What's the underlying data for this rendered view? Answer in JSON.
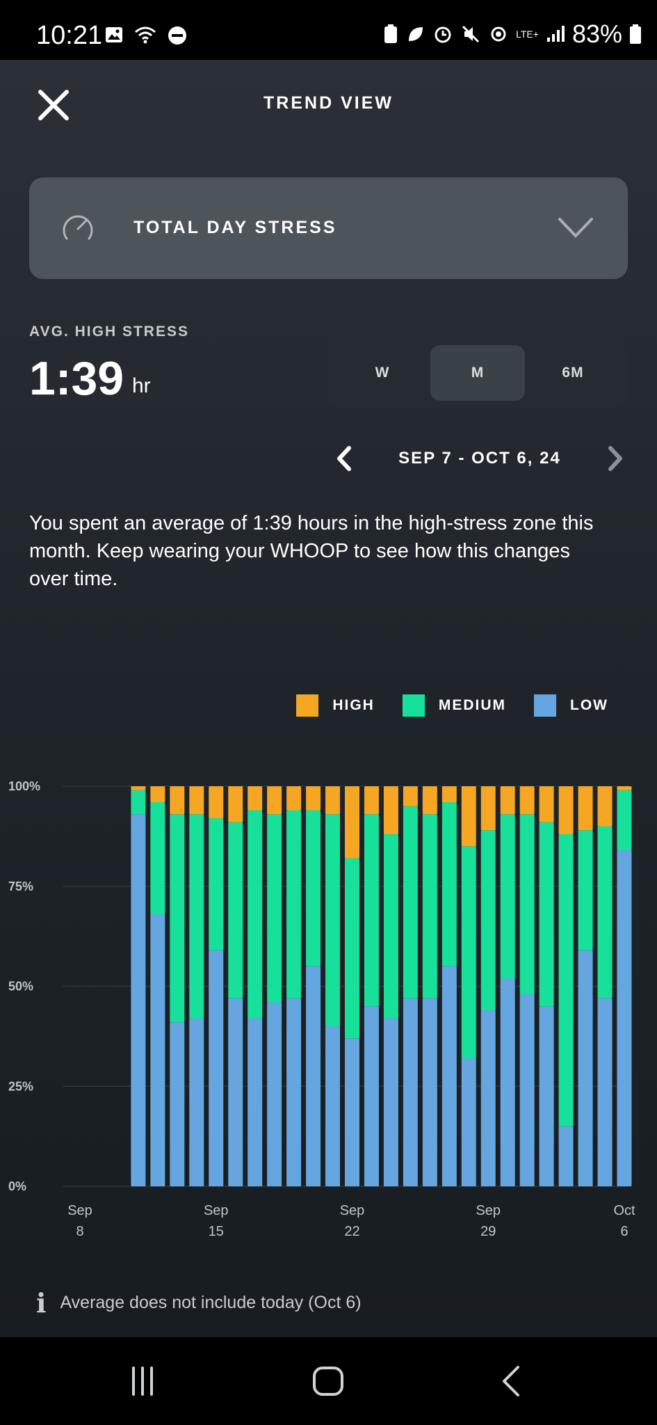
{
  "status_bar": {
    "time": "10:21",
    "battery": "83%",
    "network": "LTE+"
  },
  "header": {
    "title": "TREND VIEW"
  },
  "metric_select": {
    "label": "TOTAL DAY STRESS"
  },
  "summary": {
    "label": "AVG. HIGH STRESS",
    "value": "1:39",
    "unit": "hr"
  },
  "period_tabs": [
    {
      "label": "W",
      "active": false
    },
    {
      "label": "M",
      "active": true
    },
    {
      "label": "6M",
      "active": false
    }
  ],
  "date_range": {
    "label": "SEP 7 - OCT 6, 24"
  },
  "description": "You spent an average of 1:39 hours in the high-stress zone this month. Keep wearing your WHOOP to see how this changes over time.",
  "legend": [
    {
      "label": "HIGH",
      "color": "#f5a623"
    },
    {
      "label": "MEDIUM",
      "color": "#16e09a"
    },
    {
      "label": "LOW",
      "color": "#66a6e0"
    }
  ],
  "chart_data": {
    "type": "bar",
    "stacked": true,
    "ylim": [
      0,
      100
    ],
    "y_ticks": [
      "0%",
      "25%",
      "50%",
      "75%",
      "100%"
    ],
    "x_ticks": [
      {
        "line1": "Sep",
        "line2": "8"
      },
      {
        "line1": "Sep",
        "line2": "15"
      },
      {
        "line1": "Sep",
        "line2": "22"
      },
      {
        "line1": "Sep",
        "line2": "29"
      },
      {
        "line1": "Oct",
        "line2": "6"
      }
    ],
    "categories": [
      "Sep 8",
      "Sep 9",
      "Sep 10",
      "Sep 11",
      "Sep 12",
      "Sep 13",
      "Sep 14",
      "Sep 15",
      "Sep 16",
      "Sep 17",
      "Sep 18",
      "Sep 19",
      "Sep 20",
      "Sep 21",
      "Sep 22",
      "Sep 23",
      "Sep 24",
      "Sep 25",
      "Sep 26",
      "Sep 27",
      "Sep 28",
      "Sep 29",
      "Sep 30",
      "Oct 1",
      "Oct 2",
      "Oct 3",
      "Oct 4",
      "Oct 5",
      "Oct 6"
    ],
    "series": [
      {
        "name": "LOW",
        "color": "#66a6e0",
        "values": [
          null,
          null,
          null,
          93,
          68,
          41,
          42,
          59,
          47,
          42,
          46,
          47,
          55,
          40,
          37,
          45,
          42,
          47,
          47,
          55,
          32,
          44,
          52,
          48,
          45,
          15,
          59,
          47,
          84
        ]
      },
      {
        "name": "MEDIUM",
        "color": "#16e09a",
        "values": [
          null,
          null,
          null,
          6,
          28,
          52,
          51,
          33,
          44,
          52,
          47,
          47,
          39,
          53,
          45,
          48,
          46,
          48,
          46,
          41,
          53,
          45,
          41,
          45,
          46,
          73,
          30,
          43,
          15
        ]
      },
      {
        "name": "HIGH",
        "color": "#f5a623",
        "values": [
          null,
          null,
          null,
          1,
          4,
          7,
          7,
          8,
          9,
          6,
          7,
          6,
          6,
          7,
          18,
          7,
          12,
          5,
          7,
          4,
          15,
          11,
          7,
          7,
          9,
          12,
          11,
          10,
          1
        ]
      }
    ]
  },
  "footnote": {
    "text": "Average does not include today (Oct 6)"
  }
}
